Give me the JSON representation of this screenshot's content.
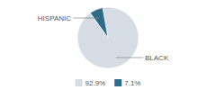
{
  "chart_data": {
    "type": "pie",
    "categories": [
      "BLACK",
      "HISPANIC"
    ],
    "values": [
      92.9,
      7.1
    ],
    "value_labels": [
      "92.9%",
      "7.1%"
    ],
    "colors": [
      "#d6dce4",
      "#2e6b8a"
    ],
    "legend": "bottom"
  }
}
